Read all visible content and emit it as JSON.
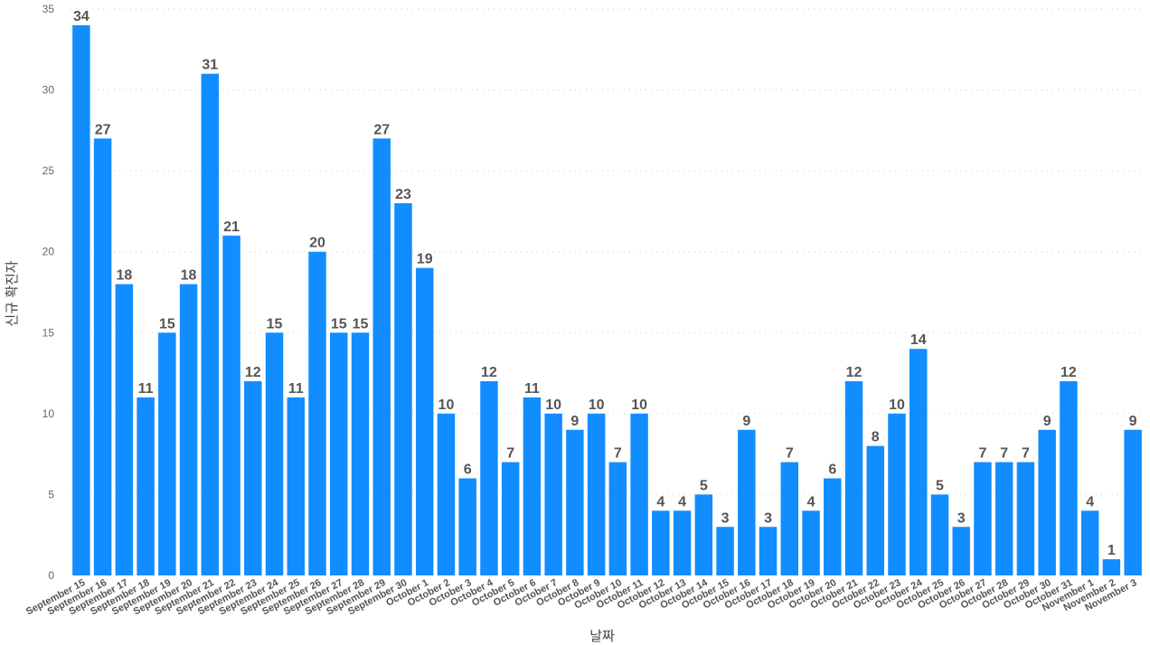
{
  "chart_data": {
    "type": "bar",
    "title": "",
    "xlabel": "날짜",
    "ylabel": "신규 확진자",
    "ylim": [
      0,
      35
    ],
    "yticks": [
      0,
      5,
      10,
      15,
      20,
      25,
      30,
      35
    ],
    "grid": true,
    "bar_color": "#118DFF",
    "categories": [
      "September 15",
      "September 16",
      "September 17",
      "September 18",
      "September 19",
      "September 20",
      "September 21",
      "September 22",
      "September 23",
      "September 24",
      "September 25",
      "September 26",
      "September 27",
      "September 28",
      "September 29",
      "September 30",
      "October 1",
      "October 2",
      "October 3",
      "October 4",
      "October 5",
      "October 6",
      "October 7",
      "October 8",
      "October 9",
      "October 10",
      "October 11",
      "October 12",
      "October 13",
      "October 14",
      "October 15",
      "October 16",
      "October 17",
      "October 18",
      "October 19",
      "October 20",
      "October 21",
      "October 22",
      "October 23",
      "October 24",
      "October 25",
      "October 26",
      "October 27",
      "October 28",
      "October 29",
      "October 30",
      "October 31",
      "November 1",
      "November 2",
      "November 3"
    ],
    "values": [
      34,
      27,
      18,
      11,
      15,
      18,
      31,
      21,
      12,
      15,
      11,
      20,
      15,
      15,
      27,
      23,
      19,
      10,
      6,
      12,
      7,
      11,
      10,
      9,
      10,
      7,
      10,
      4,
      4,
      5,
      3,
      9,
      3,
      7,
      4,
      6,
      12,
      8,
      10,
      14,
      5,
      3,
      7,
      7,
      7,
      9,
      12,
      4,
      1,
      9
    ]
  }
}
